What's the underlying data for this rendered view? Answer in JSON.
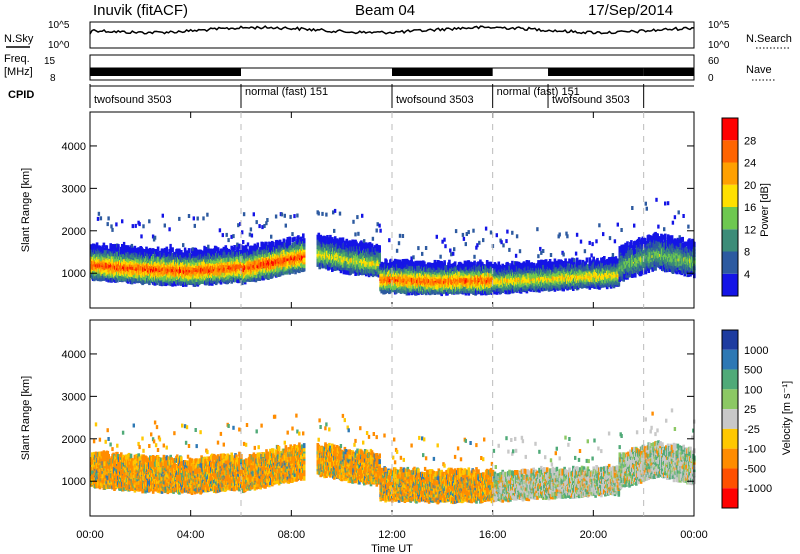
{
  "header": {
    "station": "Inuvik (fitACF)",
    "beam": "Beam 04",
    "date": "17/Sep/2014"
  },
  "strip_labels": {
    "nsky": "N.Sky",
    "freq": "Freq.",
    "freq_unit": "[MHz]",
    "cpid": "CPID",
    "nsearch": "N.Search",
    "nave": "Nave",
    "noise_ticks_left": [
      "10^5",
      "10^0"
    ],
    "noise_ticks_right": [
      "10^5",
      "10^0"
    ],
    "freq_ticks_left": [
      "15",
      "8"
    ],
    "freq_ticks_right": [
      "60",
      "0"
    ]
  },
  "cpid_segments": [
    {
      "label": "twofsound 3503",
      "start": 0,
      "end": 6
    },
    {
      "label": "normal (fast) 151",
      "start": 6,
      "end": 12
    },
    {
      "label": "twofsound 3503",
      "start": 12,
      "end": 16
    },
    {
      "label": "normal (fast) 151",
      "start": 16,
      "end": 18.2
    },
    {
      "label": "twofsound 3503",
      "start": 18.2,
      "end": 22
    }
  ],
  "axes": {
    "ylabel": "Slant Range [km]",
    "xlabel": "Time UT",
    "xticks": [
      "00:00",
      "04:00",
      "08:00",
      "12:00",
      "16:00",
      "20:00",
      "00:00"
    ],
    "xtick_hours": [
      0,
      4,
      8,
      12,
      16,
      20,
      24
    ],
    "yticks": [
      "1000",
      "2000",
      "3000",
      "4000"
    ],
    "ytick_values": [
      1000,
      2000,
      3000,
      4000
    ],
    "ylim": [
      180,
      4800
    ],
    "xlim": [
      0,
      24
    ]
  },
  "power_scale": {
    "label": "Power [dB]",
    "ticks": [
      "4",
      "8",
      "12",
      "16",
      "20",
      "24",
      "28"
    ],
    "colors": [
      "#1414e6",
      "#2d5aa0",
      "#3c8c78",
      "#6ec850",
      "#ffe000",
      "#ffa000",
      "#ff6400",
      "#ff0000"
    ]
  },
  "velocity_scale": {
    "label": "Velocity [m s⁻¹]",
    "ticks": [
      "1000",
      "500",
      "100",
      "25",
      "-25",
      "-100",
      "-500",
      "-1000"
    ],
    "colors": [
      "#1e3ca0",
      "#2d78b4",
      "#50aa78",
      "#8cc864",
      "#c8c8c8",
      "#ffc800",
      "#ff8c00",
      "#ff5000",
      "#ff0000"
    ]
  },
  "chart_data": {
    "type": "heatmap",
    "title": "",
    "xlabel": "Time UT",
    "ylabel": "Slant Range [km]",
    "x_range_hours": [
      0,
      24
    ],
    "y_range_km": [
      180,
      4800
    ],
    "panels": [
      {
        "name": "Power",
        "units": "dB",
        "colorbar_range": [
          0,
          30
        ],
        "bands": [
          {
            "t_start": 0.0,
            "t_end": 6.0,
            "range_center_km": [
              1250,
              1150,
              1100,
              1200
            ],
            "width_km": 500,
            "peak": 28
          },
          {
            "t_start": 6.0,
            "t_end": 8.5,
            "range_center_km": [
              1150,
              1300,
              1450
            ],
            "width_km": 500,
            "peak": 29
          },
          {
            "t_start": 9.0,
            "t_end": 11.5,
            "range_center_km": [
              1500,
              1350,
              1250
            ],
            "width_km": 450,
            "peak": 18
          },
          {
            "t_start": 11.5,
            "t_end": 16.0,
            "range_center_km": [
              900,
              850,
              880
            ],
            "width_km": 450,
            "peak": 27
          },
          {
            "t_start": 16.0,
            "t_end": 21.0,
            "range_center_km": [
              850,
              900,
              950,
              1000
            ],
            "width_km": 400,
            "peak": 20
          },
          {
            "t_start": 21.0,
            "t_end": 24.0,
            "range_center_km": [
              1200,
              1500,
              1300
            ],
            "width_km": 500,
            "peak": 14
          }
        ]
      },
      {
        "name": "Velocity",
        "units": "m s^-1",
        "colorbar_range": [
          -1000,
          1000
        ],
        "dominant": [
          {
            "t_start": 0.0,
            "t_end": 6.0,
            "value": -300
          },
          {
            "t_start": 6.0,
            "t_end": 12.0,
            "value": -200
          },
          {
            "t_start": 12.0,
            "t_end": 16.0,
            "value": -150
          },
          {
            "t_start": 16.0,
            "t_end": 22.0,
            "value": 0
          },
          {
            "t_start": 22.0,
            "t_end": 24.0,
            "value": 0
          }
        ]
      }
    ]
  }
}
